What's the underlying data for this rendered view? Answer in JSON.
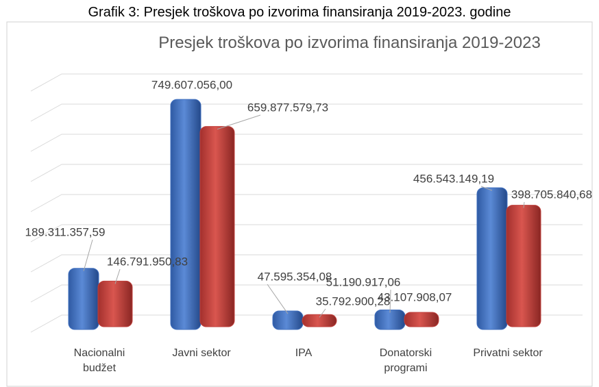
{
  "caption": "Grafik 3: Presjek troškova po izvorima finansiranja 2019-2023. godine",
  "chart_data": {
    "type": "bar",
    "title": "Presjek troškova po izvorima finansiranja 2019-2023",
    "categories": [
      "Nacionalni budžet",
      "Javni sektor",
      "IPA",
      "Donatorski programi",
      "Privatni sektor"
    ],
    "series": [
      {
        "color": "#3f6fbf",
        "values": [
          189311357.59,
          749607056.0,
          47595354.08,
          51190917.06,
          456543149.19
        ],
        "value_labels": [
          "189.311.357,59",
          "749.607.056,00",
          "47.595.354,08",
          "51.190.917,06",
          "456.543.149,19"
        ]
      },
      {
        "color": "#c0403c",
        "values": [
          146791950.83,
          659877579.73,
          35792900.28,
          43107908.07,
          398705840.68
        ],
        "value_labels": [
          "146.791.950,83",
          "659.877.579,73",
          "35.792.900,28",
          "43.107.908,07",
          "398.705.840,68"
        ]
      }
    ],
    "ylim": [
      0,
      800000000
    ],
    "yticks": [
      0,
      100000000,
      200000000,
      300000000,
      400000000,
      500000000,
      600000000,
      700000000,
      800000000
    ],
    "grid": true
  }
}
